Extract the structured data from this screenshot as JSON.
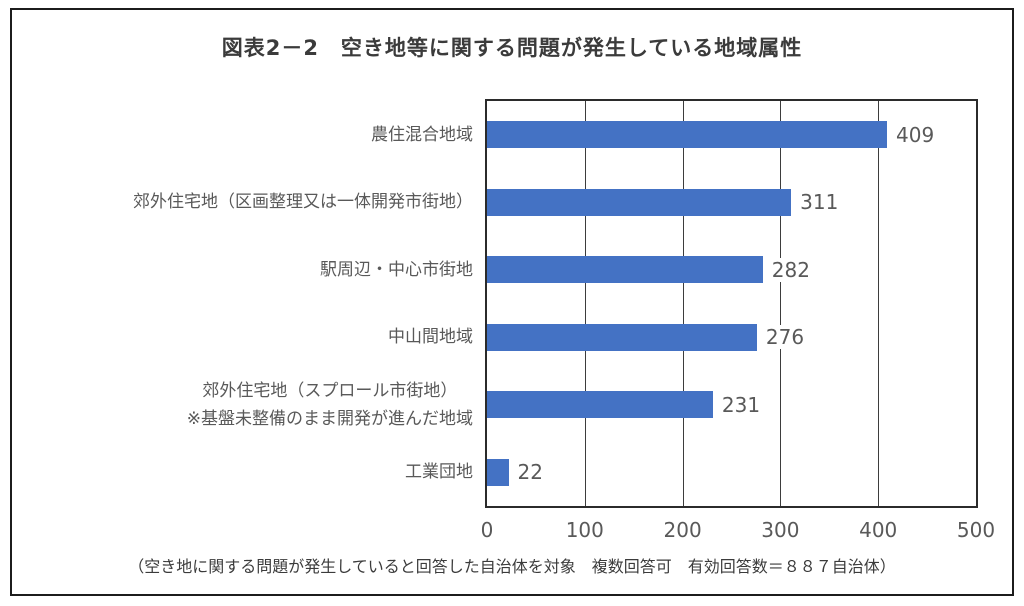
{
  "figure": {
    "title": "図表2－2　空き地等に関する問題が発生している地域属性",
    "footnote": "（空き地に関する問題が発生していると回答した自治体を対象　複数回答可　有効回答数＝８８７自治体）"
  },
  "chart_data": {
    "type": "bar",
    "orientation": "horizontal",
    "title": "図表2－2　空き地等に関する問題が発生している地域属性",
    "categories": [
      {
        "lines": [
          "農住混合地域"
        ]
      },
      {
        "lines": [
          "郊外住宅地（区画整理又は一体開発市街地）"
        ]
      },
      {
        "lines": [
          "駅周辺・中心市街地"
        ]
      },
      {
        "lines": [
          "中山間地域"
        ]
      },
      {
        "lines": [
          "郊外住宅地（スプロール市街地）",
          "※基盤未整備のまま開発が進んだ地域"
        ]
      },
      {
        "lines": [
          "工業団地"
        ]
      }
    ],
    "values": [
      409,
      311,
      282,
      276,
      231,
      22
    ],
    "data_labels": [
      "409",
      "311",
      "282",
      "276",
      "231",
      "22"
    ],
    "xlabel": "",
    "ylabel": "",
    "xlim": [
      0,
      500
    ],
    "x_ticks": [
      0,
      100,
      200,
      300,
      400,
      500
    ],
    "grid": true,
    "legend": false,
    "bar_color": "#4472C4",
    "note": "（空き地に関する問題が発生していると回答した自治体を対象　複数回答可　有効回答数＝８８７自治体）"
  }
}
